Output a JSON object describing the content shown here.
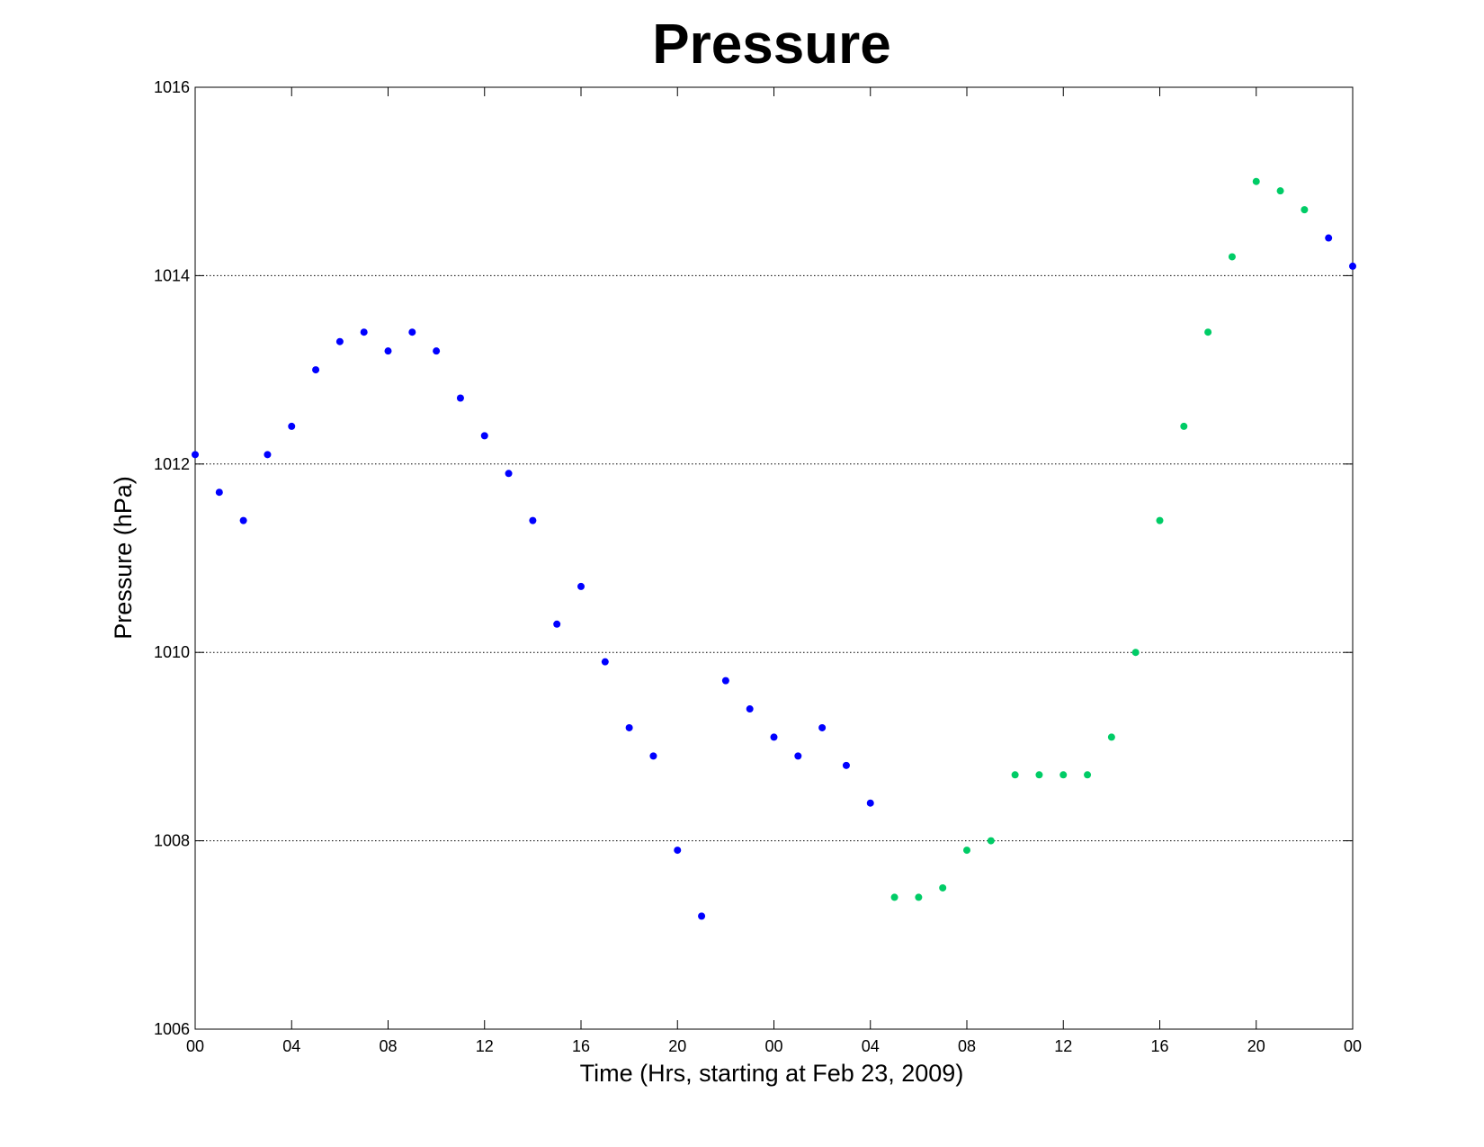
{
  "chart_data": {
    "type": "scatter",
    "title": "Pressure",
    "xlabel": "Time (Hrs, starting at Feb 23, 2009)",
    "ylabel": "Pressure (hPa)",
    "xlim": [
      0,
      48
    ],
    "ylim": [
      1006,
      1016
    ],
    "x_tick_values": [
      0,
      4,
      8,
      12,
      16,
      20,
      24,
      28,
      32,
      36,
      40,
      44,
      48
    ],
    "x_tick_labels": [
      "00",
      "04",
      "08",
      "12",
      "16",
      "20",
      "00",
      "04",
      "08",
      "12",
      "16",
      "20",
      "00"
    ],
    "y_tick_values": [
      1006,
      1008,
      1010,
      1012,
      1014,
      1016
    ],
    "y_tick_labels": [
      "1006",
      "1008",
      "1010",
      "1012",
      "1014",
      "1016"
    ],
    "grid": "horizontal dotted",
    "series": [
      {
        "color": "#0000ff",
        "x": [
          0,
          1,
          2,
          3,
          4,
          5,
          6,
          7,
          8,
          9,
          10,
          11,
          12,
          13,
          14,
          15,
          16,
          17,
          18,
          19,
          20,
          21,
          22,
          23,
          24,
          25,
          26,
          27,
          28,
          47,
          48
        ],
        "y": [
          1012.1,
          1011.7,
          1011.4,
          1012.1,
          1012.4,
          1013.0,
          1013.3,
          1013.4,
          1013.2,
          1013.4,
          1013.2,
          1012.7,
          1012.3,
          1011.9,
          1011.4,
          1010.3,
          1010.7,
          1009.9,
          1009.2,
          1008.9,
          1007.9,
          1007.2,
          1009.7,
          1009.4,
          1009.1,
          1008.9,
          1009.2,
          1008.8,
          1008.4,
          1014.4,
          1014.1
        ]
      },
      {
        "color": "#00cc66",
        "x": [
          29,
          30,
          31,
          32,
          33,
          34,
          35,
          36,
          37,
          38,
          39,
          40,
          41,
          42,
          43,
          44,
          45,
          46
        ],
        "y": [
          1007.4,
          1007.4,
          1007.5,
          1007.9,
          1008.0,
          1008.7,
          1008.7,
          1008.7,
          1008.7,
          1009.1,
          1010.0,
          1011.4,
          1012.4,
          1013.4,
          1014.2,
          1015.0,
          1014.9,
          1014.7
        ]
      }
    ]
  }
}
